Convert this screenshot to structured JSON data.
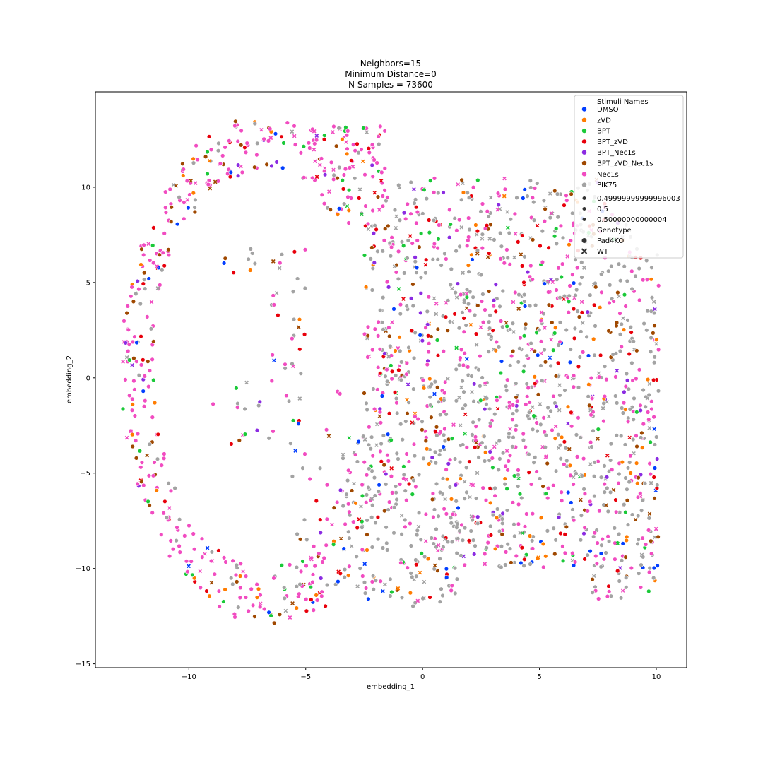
{
  "chart_data": {
    "type": "scatter",
    "title": [
      "Neighbors=15",
      "Minimum Distance=0",
      "N Samples = 73600"
    ],
    "xlabel": "embedding_1",
    "ylabel": "embedding_2",
    "xlim": [
      -14.0,
      11.3
    ],
    "ylim": [
      -15.2,
      15.0
    ],
    "xticks": [
      -10,
      -5,
      0,
      5,
      10
    ],
    "xtick_labels": [
      "−10",
      "−5",
      "0",
      "5",
      "10"
    ],
    "yticks": [
      -15,
      -10,
      -5,
      0,
      5,
      10
    ],
    "ytick_labels": [
      "−15",
      "−10",
      "−5",
      "0",
      "5",
      "10"
    ],
    "grid": false,
    "legend_placement": "top-right",
    "n_samples": 73600,
    "hue": {
      "title": "Stimuli Names",
      "entries": [
        {
          "label": "DMSO",
          "color": "#023eff"
        },
        {
          "label": "zVD",
          "color": "#ff7c00"
        },
        {
          "label": "BPT",
          "color": "#1ac938"
        },
        {
          "label": "BPT_zVD",
          "color": "#e8000b"
        },
        {
          "label": "BPT_Nec1s",
          "color": "#8b2be2"
        },
        {
          "label": "BPT_zVD_Nec1s",
          "color": "#9f4800"
        },
        {
          "label": "Nec1s",
          "color": "#f14cc1"
        },
        {
          "label": "PIK75",
          "color": "#a3a3a3"
        }
      ]
    },
    "size": {
      "entries": [
        "0.49999999999996003",
        "0.5",
        "0.50000000000004"
      ]
    },
    "style": {
      "title": "Genotype",
      "entries": [
        {
          "label": "Pad4KO",
          "marker": "circle"
        },
        {
          "label": "WT",
          "marker": "x"
        }
      ]
    },
    "regions": [
      {
        "category": "Nec1s",
        "density": "high",
        "x_range": [
          -12.8,
          -3.5
        ],
        "y_range": [
          -13.5,
          13.3
        ]
      },
      {
        "category": "PIK75",
        "density": "high",
        "x_range": [
          -5.0,
          10.0
        ],
        "y_range": [
          -12.0,
          10.5
        ]
      },
      {
        "category": "Nec1s",
        "density": "medium",
        "x_range": [
          -1.0,
          9.0
        ],
        "y_range": [
          -5.0,
          10.0
        ]
      }
    ]
  }
}
